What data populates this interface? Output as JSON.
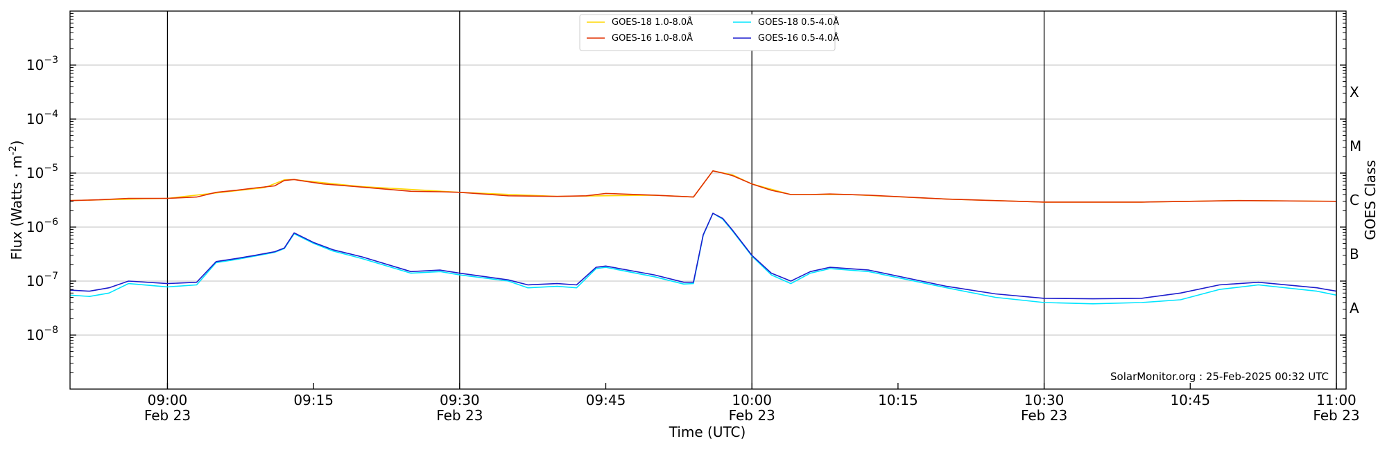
{
  "chart_data": {
    "type": "line",
    "xlabel": "Time (UTC)",
    "ylabel": "Flux (Watts · m",
    "ylabel_exp": "-2",
    "ylabel_close": ")",
    "ylabel_right": "GOES Class",
    "yscale": "log",
    "ylim": [
      1e-09,
      0.01
    ],
    "xlim": [
      "2025-02-23 08:50",
      "2025-02-23 11:01"
    ],
    "grid": "horizontal",
    "legend_position": "top-center",
    "credit": "SolarMonitor.org : 25-Feb-2025 00:32 UTC",
    "x_ticks": [
      {
        "time": "09:00",
        "date": "Feb 23",
        "major": true
      },
      {
        "time": "09:15",
        "date": "",
        "major": false
      },
      {
        "time": "09:30",
        "date": "Feb 23",
        "major": true
      },
      {
        "time": "09:45",
        "date": "",
        "major": false
      },
      {
        "time": "10:00",
        "date": "Feb 23",
        "major": true
      },
      {
        "time": "10:15",
        "date": "",
        "major": false
      },
      {
        "time": "10:30",
        "date": "Feb 23",
        "major": true
      },
      {
        "time": "10:45",
        "date": "",
        "major": false
      },
      {
        "time": "11:00",
        "date": "Feb 23",
        "major": true
      }
    ],
    "y_ticks": [
      {
        "base": "10",
        "exp": "−8",
        "value": 1e-08
      },
      {
        "base": "10",
        "exp": "−7",
        "value": 1e-07
      },
      {
        "base": "10",
        "exp": "−6",
        "value": 1e-06
      },
      {
        "base": "10",
        "exp": "−5",
        "value": 1e-05
      },
      {
        "base": "10",
        "exp": "−4",
        "value": 0.0001
      },
      {
        "base": "10",
        "exp": "−3",
        "value": 0.001
      }
    ],
    "goes_classes": [
      {
        "label": "A",
        "value": 3.16e-08
      },
      {
        "label": "B",
        "value": 3.16e-07
      },
      {
        "label": "C",
        "value": 3.16e-06
      },
      {
        "label": "M",
        "value": 3.16e-05
      },
      {
        "label": "X",
        "value": 0.000316
      }
    ],
    "series": [
      {
        "name": "GOES-18 1.0-8.0Å",
        "color": "#ffd700",
        "x": [
          "08:50",
          "09:00",
          "09:10",
          "09:12",
          "09:13",
          "09:14",
          "09:20",
          "09:30",
          "09:40",
          "09:50",
          "09:54",
          "09:56",
          "09:58",
          "10:00",
          "10:04",
          "10:10",
          "10:20",
          "10:30",
          "10:40",
          "10:50",
          "11:00"
        ],
        "y": [
          3.1e-06,
          3.4e-06,
          5.4e-06,
          7.5e-06,
          7.6e-06,
          7.2e-06,
          5.6e-06,
          4.4e-06,
          3.7e-06,
          3.9e-06,
          3.6e-06,
          1.1e-05,
          9.3e-06,
          6.3e-06,
          4e-06,
          4e-06,
          3.3e-06,
          2.9e-06,
          2.9e-06,
          3.1e-06,
          3e-06
        ]
      },
      {
        "name": "GOES-16 1.0-8.0Å",
        "color": "#e03000",
        "x": [
          "08:50",
          "08:53",
          "08:56",
          "09:00",
          "09:03",
          "09:05",
          "09:07",
          "09:09",
          "09:11",
          "09:12",
          "09:13",
          "09:14",
          "09:16",
          "09:20",
          "09:25",
          "09:28",
          "09:30",
          "09:35",
          "09:40",
          "09:43",
          "09:45",
          "09:50",
          "09:54",
          "09:56",
          "09:57",
          "09:58",
          "10:00",
          "10:02",
          "10:04",
          "10:06",
          "10:08",
          "10:12",
          "10:20",
          "10:30",
          "10:40",
          "10:50",
          "11:00"
        ],
        "y": [
          3.1e-06,
          3.2e-06,
          3.4e-06,
          3.4e-06,
          3.6e-06,
          4.4e-06,
          4.8e-06,
          5.3e-06,
          5.8e-06,
          7.3e-06,
          7.6e-06,
          7.1e-06,
          6.3e-06,
          5.5e-06,
          4.6e-06,
          4.5e-06,
          4.4e-06,
          3.8e-06,
          3.7e-06,
          3.8e-06,
          4.2e-06,
          3.9e-06,
          3.6e-06,
          1.1e-05,
          1e-05,
          9e-06,
          6.3e-06,
          4.8e-06,
          4e-06,
          4e-06,
          4.1e-06,
          3.9e-06,
          3.3e-06,
          2.9e-06,
          2.9e-06,
          3.1e-06,
          3e-06
        ]
      },
      {
        "name": "GOES-18 0.5-4.0Å",
        "color": "#00e5ff",
        "x": [
          "08:50",
          "08:52",
          "08:54",
          "08:56",
          "09:00",
          "09:03",
          "09:05",
          "09:07",
          "09:09",
          "09:11",
          "09:12",
          "09:13",
          "09:15",
          "09:17",
          "09:20",
          "09:25",
          "09:28",
          "09:30",
          "09:35",
          "09:37",
          "09:40",
          "09:42",
          "09:44",
          "09:45",
          "09:50",
          "09:53",
          "09:54",
          "09:55",
          "09:56",
          "09:57",
          "09:58",
          "10:00",
          "10:02",
          "10:04",
          "10:06",
          "10:08",
          "10:12",
          "10:20",
          "10:25",
          "10:30",
          "10:35",
          "10:40",
          "10:44",
          "10:48",
          "10:52",
          "10:58",
          "11:00"
        ],
        "y": [
          5.5e-08,
          5.2e-08,
          6e-08,
          9e-08,
          7.8e-08,
          8.5e-08,
          2.2e-07,
          2.5e-07,
          2.9e-07,
          3.4e-07,
          4e-07,
          7.5e-07,
          5e-07,
          3.6e-07,
          2.6e-07,
          1.4e-07,
          1.5e-07,
          1.3e-07,
          1e-07,
          7.5e-08,
          8e-08,
          7.5e-08,
          1.7e-07,
          1.8e-07,
          1.2e-07,
          8.8e-08,
          9e-08,
          7e-07,
          1.8e-06,
          1.4e-06,
          8.5e-07,
          2.9e-07,
          1.3e-07,
          9e-08,
          1.4e-07,
          1.7e-07,
          1.5e-07,
          7.5e-08,
          5e-08,
          4e-08,
          3.8e-08,
          4e-08,
          4.5e-08,
          7e-08,
          8.5e-08,
          6.5e-08,
          5.5e-08
        ]
      },
      {
        "name": "GOES-16 0.5-4.0Å",
        "color": "#1c1ccd",
        "x": [
          "08:50",
          "08:52",
          "08:54",
          "08:56",
          "09:00",
          "09:03",
          "09:05",
          "09:07",
          "09:09",
          "09:11",
          "09:12",
          "09:13",
          "09:15",
          "09:17",
          "09:20",
          "09:25",
          "09:28",
          "09:30",
          "09:35",
          "09:37",
          "09:40",
          "09:42",
          "09:44",
          "09:45",
          "09:50",
          "09:53",
          "09:54",
          "09:55",
          "09:56",
          "09:57",
          "09:58",
          "10:00",
          "10:02",
          "10:04",
          "10:06",
          "10:08",
          "10:12",
          "10:20",
          "10:25",
          "10:30",
          "10:35",
          "10:40",
          "10:44",
          "10:48",
          "10:52",
          "10:58",
          "11:00"
        ],
        "y": [
          6.8e-08,
          6.5e-08,
          7.5e-08,
          1e-07,
          9e-08,
          9.5e-08,
          2.3e-07,
          2.6e-07,
          3e-07,
          3.5e-07,
          4.1e-07,
          7.8e-07,
          5.2e-07,
          3.8e-07,
          2.8e-07,
          1.5e-07,
          1.6e-07,
          1.4e-07,
          1.05e-07,
          8.5e-08,
          9e-08,
          8.5e-08,
          1.8e-07,
          1.9e-07,
          1.3e-07,
          9.5e-08,
          9.5e-08,
          7.2e-07,
          1.8e-06,
          1.45e-06,
          8.8e-07,
          3e-07,
          1.4e-07,
          1e-07,
          1.5e-07,
          1.8e-07,
          1.6e-07,
          8e-08,
          5.8e-08,
          4.8e-08,
          4.7e-08,
          4.8e-08,
          6e-08,
          8.5e-08,
          9.5e-08,
          7.5e-08,
          6.5e-08
        ]
      }
    ]
  }
}
